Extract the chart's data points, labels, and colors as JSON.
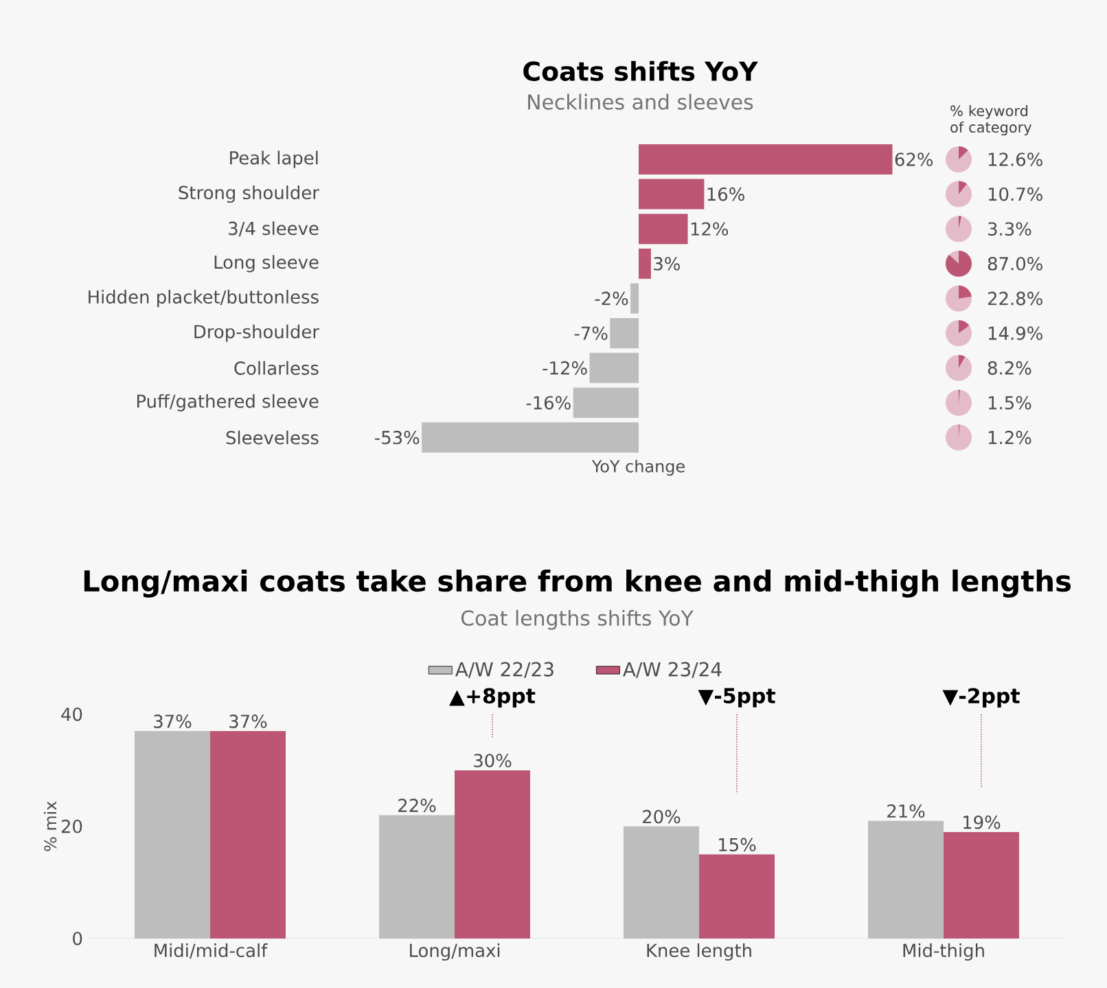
{
  "chart_data": [
    {
      "type": "bar",
      "orientation": "horizontal",
      "title": "Coats shifts YoY",
      "subtitle": "Necklines and sleeves",
      "xlabel": "YoY change",
      "categories": [
        "Peak lapel",
        "Strong shoulder",
        "3/4 sleeve",
        "Long sleeve",
        "Hidden placket/buttonless",
        "Drop-shoulder",
        "Collarless",
        "Puff/gathered sleeve",
        "Sleeveless"
      ],
      "values": [
        62,
        16,
        12,
        3,
        -2,
        -7,
        -12,
        -16,
        -53
      ],
      "value_labels": [
        "62%",
        "16%",
        "12%",
        "3%",
        "-2%",
        "-7%",
        "-12%",
        "-16%",
        "-53%"
      ],
      "colors": [
        "#bd5675",
        "#bd5675",
        "#bd5675",
        "#bd5675",
        "#bdbdbd",
        "#bdbdbd",
        "#bdbdbd",
        "#bdbdbd",
        "#bdbdbd"
      ]
    },
    {
      "type": "other",
      "title": "% keyword of category",
      "color": "#bd5675",
      "values": [
        12.6,
        10.7,
        3.3,
        87.0,
        22.8,
        14.9,
        8.2,
        1.5,
        1.2
      ],
      "value_labels": [
        "12.6%",
        "10.7%",
        "3.3%",
        "87.0%",
        "22.8%",
        "14.9%",
        "8.2%",
        "1.5%",
        "1.2%"
      ]
    },
    {
      "type": "bar",
      "title": "Long/maxi coats take share from knee and mid-thigh lengths",
      "subtitle": "Coat lengths shifts YoY",
      "ylabel": "% mix",
      "categories": [
        "Midi/mid-calf",
        "Long/maxi",
        "Knee length",
        "Mid-thigh"
      ],
      "series": [
        {
          "name": "A/W 22/23",
          "color": "#bdbdbd",
          "values": [
            37,
            22,
            20,
            21
          ],
          "value_labels": [
            "37%",
            "22%",
            "20%",
            "21%"
          ]
        },
        {
          "name": "A/W 23/24",
          "color": "#bd5675",
          "values": [
            37,
            30,
            15,
            19
          ],
          "value_labels": [
            "37%",
            "30%",
            "15%",
            "19%"
          ]
        }
      ],
      "ylim": [
        0,
        40
      ],
      "yticks": [
        0,
        20,
        40
      ],
      "legend": "top",
      "annotations": [
        "▲+8ppt",
        "▼-5ppt",
        "▼-2ppt"
      ]
    }
  ]
}
